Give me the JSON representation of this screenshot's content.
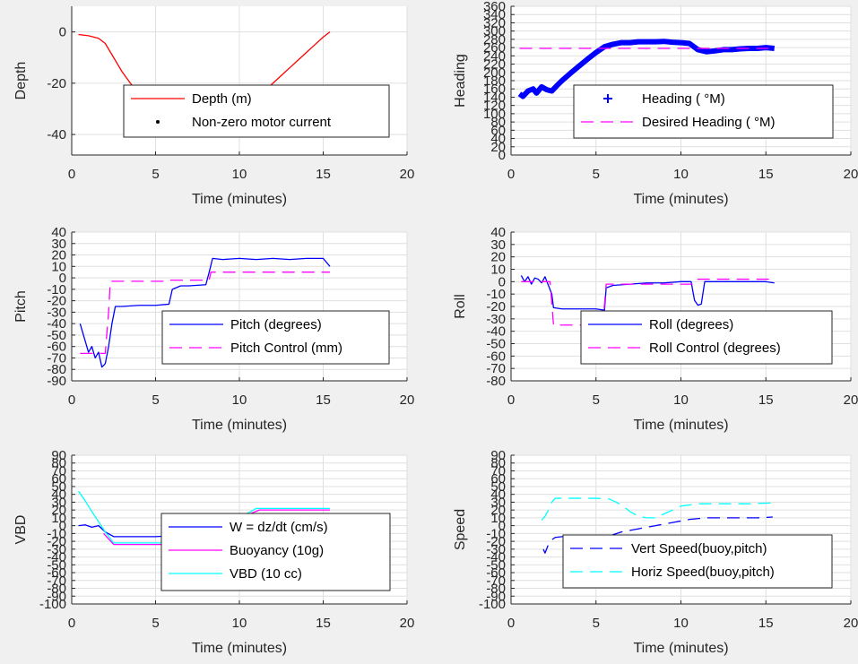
{
  "chart_data": [
    {
      "type": "line",
      "panel": "depth",
      "xlabel": "Time (minutes)",
      "ylabel": "Depth",
      "xlim": [
        0,
        20
      ],
      "ylim": [
        -48,
        10
      ],
      "xticks": [
        0,
        5,
        10,
        15,
        20
      ],
      "yticks": [
        0,
        -20,
        -40
      ],
      "grid": true,
      "legend_position": "center-right",
      "series": [
        {
          "name": "Depth (m)",
          "color": "#ff0000",
          "style": "solid",
          "x": [
            0.4,
            1.0,
            1.6,
            2.0,
            2.5,
            3.0,
            3.5,
            4.0,
            4.5,
            5.0,
            5.5,
            6.0,
            6.5,
            7.0,
            7.5,
            8.0,
            8.5,
            9.0,
            9.5,
            10.0,
            10.5,
            11.0,
            11.5,
            12.0,
            12.5,
            13.0,
            13.5,
            14.0,
            14.5,
            15.0,
            15.4
          ],
          "y": [
            -1,
            -1.5,
            -2.5,
            -4.5,
            -10,
            -15.5,
            -20,
            -24,
            -28,
            -31.5,
            -33.5,
            -34,
            -35.5,
            -37,
            -38,
            -38,
            -37.5,
            -35.5,
            -33.5,
            -31,
            -28.5,
            -26,
            -23,
            -20,
            -17,
            -14,
            -11,
            -8,
            -5,
            -2,
            0
          ]
        },
        {
          "name": "Non-zero motor current",
          "color": "#000000",
          "style": "dots",
          "x": [
            5.1,
            5.8,
            6.0,
            6.4,
            6.8,
            7.2,
            7.6,
            8.0,
            8.4,
            8.8,
            9.2,
            9.6,
            10.0,
            10.4
          ],
          "y": [
            -35,
            -33,
            -34.5,
            -35.5,
            -36.5,
            -37,
            -37.5,
            -38,
            -37.5,
            -36.5,
            -35.5,
            -34,
            -32.5,
            -31.5
          ]
        }
      ],
      "legend": [
        "Depth (m)",
        "Non-zero motor current"
      ]
    },
    {
      "type": "line",
      "panel": "heading",
      "xlabel": "Time (minutes)",
      "ylabel": "Heading",
      "xlim": [
        0,
        20
      ],
      "ylim": [
        0,
        360
      ],
      "xticks": [
        0,
        5,
        10,
        15,
        20
      ],
      "yticks": [
        0,
        20,
        40,
        60,
        80,
        100,
        120,
        140,
        160,
        180,
        200,
        220,
        240,
        260,
        280,
        300,
        320,
        340,
        360
      ],
      "grid": true,
      "legend_position": "lower-right",
      "series": [
        {
          "name": "Heading ( °M)",
          "color": "#0000ff",
          "style": "plus",
          "x": [
            0.5,
            0.7,
            1.0,
            1.3,
            1.5,
            1.8,
            2.1,
            2.4,
            2.7,
            3.0,
            3.5,
            4.0,
            4.5,
            5.0,
            5.5,
            6.0,
            6.5,
            7.0,
            7.5,
            8.0,
            8.5,
            9.0,
            9.5,
            10.0,
            10.5,
            11.0,
            11.5,
            12.0,
            12.5,
            13.0,
            13.5,
            14.0,
            14.5,
            15.0,
            15.5
          ],
          "y": [
            148,
            142,
            155,
            160,
            150,
            165,
            158,
            155,
            168,
            180,
            198,
            215,
            232,
            248,
            262,
            268,
            272,
            272,
            274,
            274,
            274,
            275,
            273,
            272,
            270,
            255,
            250,
            252,
            255,
            255,
            257,
            258,
            258,
            260,
            258
          ]
        },
        {
          "name": "Desired Heading ( °M)",
          "color": "#ff00ff",
          "style": "dashed",
          "x": [
            0.5,
            15.5
          ],
          "y": [
            258,
            258
          ]
        }
      ],
      "legend": [
        "Heading ( °M)",
        "Desired Heading ( °M)"
      ]
    },
    {
      "type": "line",
      "panel": "pitch",
      "xlabel": "Time (minutes)",
      "ylabel": "Pitch",
      "xlim": [
        0,
        20
      ],
      "ylim": [
        -90,
        40
      ],
      "xticks": [
        0,
        5,
        10,
        15,
        20
      ],
      "yticks": [
        40,
        30,
        20,
        10,
        0,
        -10,
        -20,
        -30,
        -40,
        -50,
        -60,
        -70,
        -80,
        -90
      ],
      "ytick_labels": [
        "40",
        "30",
        "20",
        "10",
        "0",
        "-10",
        "-20",
        "-30",
        "-40",
        "-50",
        "-60",
        "-70",
        "-80",
        "-90"
      ],
      "grid": true,
      "legend_position": "lower-right",
      "series": [
        {
          "name": "Pitch (degrees)",
          "color": "#0000ff",
          "style": "solid",
          "x": [
            0.5,
            0.8,
            1.0,
            1.2,
            1.4,
            1.6,
            1.8,
            2.0,
            2.2,
            2.4,
            2.6,
            3.0,
            4.0,
            5.0,
            5.8,
            6.0,
            6.5,
            7.0,
            8.0,
            8.2,
            8.4,
            9.0,
            10.0,
            11.0,
            12.0,
            13.0,
            14.0,
            15.0,
            15.4
          ],
          "y": [
            -40,
            -55,
            -65,
            -60,
            -70,
            -65,
            -78,
            -75,
            -60,
            -40,
            -25,
            -25,
            -24,
            -24,
            -23,
            -10,
            -7,
            -7,
            -6,
            5,
            17,
            16,
            17,
            16,
            17,
            16,
            17,
            17,
            10
          ]
        },
        {
          "name": "Pitch Control (mm)",
          "color": "#ff00ff",
          "style": "dashed",
          "x": [
            0.5,
            1.9,
            2.0,
            2.2,
            2.3,
            5.8,
            5.9,
            8.2,
            8.3,
            15.4
          ],
          "y": [
            -66,
            -66,
            -66,
            -30,
            -3,
            -3,
            -2,
            -2,
            5,
            5
          ]
        }
      ],
      "legend": [
        "Pitch (degrees)",
        "Pitch Control (mm)"
      ]
    },
    {
      "type": "line",
      "panel": "roll",
      "xlabel": "Time (minutes)",
      "ylabel": "Roll",
      "xlim": [
        0,
        20
      ],
      "ylim": [
        -80,
        40
      ],
      "xticks": [
        0,
        5,
        10,
        15,
        20
      ],
      "yticks": [
        40,
        30,
        20,
        10,
        0,
        -10,
        -20,
        -30,
        -40,
        -50,
        -60,
        -70,
        -80
      ],
      "ytick_labels": [
        "40",
        "30",
        "20",
        "10",
        "0",
        "-10",
        "-20",
        "-30",
        "-40",
        "-50",
        "-60",
        "-70",
        "-80"
      ],
      "grid": true,
      "legend_position": "lower-right",
      "series": [
        {
          "name": "Roll (degrees)",
          "color": "#0000ff",
          "style": "solid",
          "x": [
            0.6,
            0.8,
            1.0,
            1.2,
            1.4,
            1.6,
            1.8,
            2.0,
            2.2,
            2.4,
            2.5,
            3.0,
            4.0,
            5.0,
            5.5,
            5.6,
            6.0,
            7.0,
            8.0,
            9.0,
            10.0,
            10.6,
            10.8,
            11.0,
            11.2,
            11.4,
            11.6,
            12.0,
            13.0,
            14.0,
            15.0,
            15.5
          ],
          "y": [
            5,
            0,
            4,
            -2,
            3,
            2,
            -1,
            4,
            -3,
            -10,
            -21,
            -22,
            -22,
            -22,
            -23,
            -5,
            -3,
            -2,
            -1,
            -1,
            0,
            0,
            -15,
            -19,
            -18,
            0,
            0,
            0,
            0,
            0,
            0,
            -1
          ]
        },
        {
          "name": "Roll Control (degrees)",
          "color": "#ff00ff",
          "style": "dashed",
          "x": [
            0.6,
            2.3,
            2.5,
            5.4,
            5.6,
            10.8,
            11.0,
            15.5
          ],
          "y": [
            0,
            0,
            -35,
            -35,
            -2,
            -2,
            2,
            2
          ]
        }
      ],
      "legend": [
        "Roll (degrees)",
        "Roll Control (degrees)"
      ]
    },
    {
      "type": "line",
      "panel": "vbd",
      "xlabel": "Time (minutes)",
      "ylabel": "VBD",
      "xlim": [
        0,
        20
      ],
      "ylim": [
        -100,
        90
      ],
      "xticks": [
        0,
        5,
        10,
        15,
        20
      ],
      "yticks": [
        90,
        80,
        70,
        60,
        50,
        40,
        30,
        20,
        10,
        0,
        -10,
        -20,
        -30,
        -40,
        -50,
        -60,
        -70,
        -80,
        -90,
        -100
      ],
      "ytick_labels": [
        "90",
        "80",
        "70",
        "60",
        "50",
        "40",
        "30",
        "20",
        "10",
        "0",
        "-10",
        "-20",
        "-30",
        "-40",
        "-50",
        "-60",
        "-70",
        "-80",
        "-90",
        "-100"
      ],
      "grid": true,
      "legend_position": "lower-right",
      "series": [
        {
          "name": "W = dz/dt (cm/s)",
          "color": "#0000ff",
          "style": "solid",
          "x": [
            0.4,
            0.8,
            1.2,
            1.6,
            2.0,
            2.5,
            3.0,
            4.0,
            5.0,
            5.8,
            6.2,
            7.0,
            8.0,
            9.0,
            10.0,
            11.0,
            12.0,
            13.0,
            14.0,
            15.0,
            15.4
          ],
          "y": [
            0,
            1,
            -2,
            0,
            -8,
            -14,
            -14,
            -14,
            -14,
            -13,
            -5,
            -3,
            3,
            8,
            12,
            13,
            13,
            13,
            13,
            13,
            13
          ]
        },
        {
          "name": "Buoyancy (10g)",
          "color": "#ff00ff",
          "style": "solid",
          "x": [
            1.9,
            2.5,
            5.8,
            6.5,
            7.5,
            8.5,
            9.5,
            10.5,
            11.2,
            15.4
          ],
          "y": [
            -10,
            -24,
            -24,
            -18,
            -10,
            -3,
            6,
            14,
            20,
            20
          ]
        },
        {
          "name": "VBD (10 cc)",
          "color": "#00ffff",
          "style": "solid",
          "x": [
            0.4,
            0.8,
            1.2,
            1.6,
            2.0,
            2.5,
            5.8,
            6.5,
            7.5,
            8.5,
            9.5,
            10.5,
            11.0,
            15.4
          ],
          "y": [
            44,
            32,
            18,
            5,
            -8,
            -22,
            -22,
            -16,
            -8,
            -1,
            8,
            16,
            22,
            22
          ]
        }
      ],
      "legend": [
        "W = dz/dt (cm/s)",
        "Buoyancy (10g)",
        "VBD (10 cc)"
      ]
    },
    {
      "type": "line",
      "panel": "speed",
      "xlabel": "Time (minutes)",
      "ylabel": "Speed",
      "xlim": [
        0,
        20
      ],
      "ylim": [
        -100,
        90
      ],
      "xticks": [
        0,
        5,
        10,
        15,
        20
      ],
      "yticks": [
        90,
        80,
        70,
        60,
        50,
        40,
        30,
        20,
        10,
        0,
        -10,
        -20,
        -30,
        -40,
        -50,
        -60,
        -70,
        -80,
        -90,
        -100
      ],
      "ytick_labels": [
        "90",
        "80",
        "70",
        "60",
        "50",
        "40",
        "30",
        "20",
        "10",
        "0",
        "-10",
        "-20",
        "-30",
        "-40",
        "-50",
        "-60",
        "-70",
        "-80",
        "-90",
        "-100"
      ],
      "grid": true,
      "legend_position": "lower-right",
      "series": [
        {
          "name": "Vert Speed(buoy,pitch)",
          "color": "#0000ff",
          "style": "dashed",
          "x": [
            1.9,
            2.0,
            2.2,
            2.4,
            2.6,
            3.0,
            4.0,
            5.0,
            5.8,
            6.5,
            7.5,
            8.5,
            9.5,
            10.5,
            11.5,
            12.5,
            13.5,
            14.5,
            15.4
          ],
          "y": [
            -30,
            -35,
            -24,
            -18,
            -15,
            -14,
            -14,
            -14,
            -13,
            -8,
            -4,
            0,
            4,
            8,
            10,
            10,
            10,
            10,
            11
          ]
        },
        {
          "name": "Horiz Speed(buoy,pitch)",
          "color": "#00ffff",
          "style": "dashed",
          "x": [
            1.8,
            2.0,
            2.2,
            2.4,
            2.6,
            3.0,
            4.0,
            5.0,
            5.8,
            6.2,
            6.6,
            7.0,
            7.5,
            8.0,
            8.5,
            9.0,
            9.5,
            10.0,
            11.0,
            12.0,
            13.0,
            14.0,
            15.4
          ],
          "y": [
            7,
            12,
            20,
            30,
            35,
            35,
            35,
            35,
            34,
            30,
            25,
            18,
            12,
            10,
            10,
            15,
            20,
            25,
            28,
            28,
            28,
            28,
            29
          ]
        }
      ],
      "legend": [
        "Vert Speed(buoy,pitch)",
        "Horiz Speed(buoy,pitch)"
      ]
    }
  ]
}
